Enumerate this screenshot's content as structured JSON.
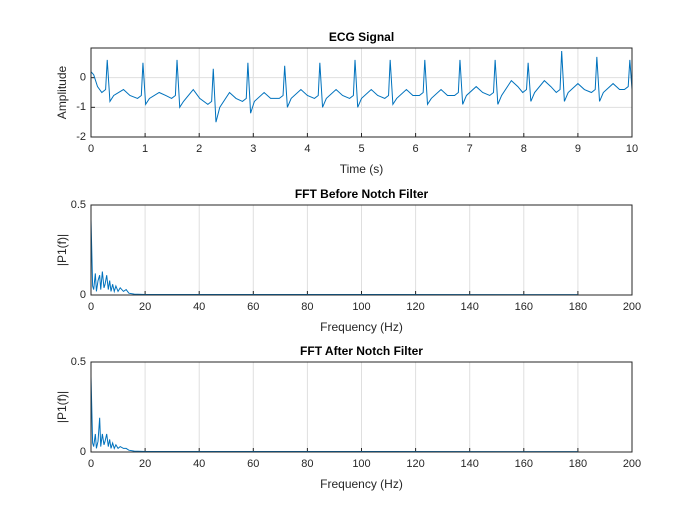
{
  "chart_data": [
    {
      "type": "line",
      "title": "ECG Signal",
      "xlabel": "Time (s)",
      "ylabel": "Amplitude",
      "grid": true,
      "color": "#0072bd",
      "xlim": [
        0,
        10
      ],
      "xticks": [
        0,
        1,
        2,
        3,
        4,
        5,
        6,
        7,
        8,
        9,
        10
      ],
      "ylim": [
        -2,
        1
      ],
      "yticks": [
        -2,
        -1,
        0
      ],
      "x": [
        0,
        0.05,
        0.12,
        0.2,
        0.27,
        0.3,
        0.35,
        0.42,
        0.6,
        0.72,
        0.86,
        0.93,
        0.96,
        1.01,
        1.08,
        1.26,
        1.38,
        1.49,
        1.56,
        1.59,
        1.64,
        1.71,
        1.89,
        2.01,
        2.16,
        2.23,
        2.26,
        2.31,
        2.38,
        2.56,
        2.68,
        2.8,
        2.87,
        2.9,
        2.95,
        3.02,
        3.2,
        3.32,
        3.48,
        3.55,
        3.58,
        3.63,
        3.7,
        3.88,
        4.0,
        4.13,
        4.2,
        4.23,
        4.28,
        4.35,
        4.53,
        4.65,
        4.78,
        4.85,
        4.88,
        4.93,
        5.0,
        5.18,
        5.3,
        5.43,
        5.5,
        5.53,
        5.58,
        5.65,
        5.83,
        5.95,
        6.07,
        6.14,
        6.17,
        6.22,
        6.29,
        6.47,
        6.59,
        6.72,
        6.79,
        6.82,
        6.87,
        6.94,
        7.12,
        7.24,
        7.37,
        7.44,
        7.47,
        7.52,
        7.59,
        7.77,
        7.89,
        7.98,
        8.05,
        8.08,
        8.13,
        8.2,
        8.38,
        8.5,
        8.6,
        8.67,
        8.7,
        8.75,
        8.82,
        9.0,
        9.12,
        9.25,
        9.32,
        9.35,
        9.4,
        9.47,
        9.65,
        9.77,
        9.86,
        9.93,
        9.96,
        10
      ],
      "values": [
        0.2,
        0.1,
        -0.3,
        -0.5,
        -0.4,
        0.6,
        -0.8,
        -0.6,
        -0.4,
        -0.6,
        -0.7,
        -0.6,
        0.5,
        -0.9,
        -0.7,
        -0.5,
        -0.6,
        -0.7,
        -0.6,
        0.6,
        -1.0,
        -0.8,
        -0.4,
        -0.7,
        -0.9,
        -0.8,
        0.3,
        -1.5,
        -1.0,
        -0.5,
        -0.7,
        -0.8,
        -0.7,
        0.5,
        -1.2,
        -0.8,
        -0.5,
        -0.7,
        -0.7,
        -0.6,
        0.4,
        -1.0,
        -0.7,
        -0.4,
        -0.6,
        -0.7,
        -0.6,
        0.5,
        -1.0,
        -0.7,
        -0.4,
        -0.6,
        -0.7,
        -0.6,
        0.6,
        -1.0,
        -0.7,
        -0.4,
        -0.6,
        -0.7,
        -0.6,
        0.6,
        -0.9,
        -0.7,
        -0.4,
        -0.6,
        -0.6,
        -0.5,
        0.6,
        -0.9,
        -0.7,
        -0.4,
        -0.6,
        -0.6,
        -0.5,
        0.6,
        -0.9,
        -0.6,
        -0.3,
        -0.5,
        -0.6,
        -0.5,
        0.6,
        -0.9,
        -0.6,
        -0.1,
        -0.3,
        -0.5,
        -0.4,
        0.5,
        -0.8,
        -0.5,
        -0.1,
        -0.3,
        -0.5,
        -0.4,
        0.9,
        -0.8,
        -0.5,
        -0.2,
        -0.4,
        -0.5,
        -0.4,
        0.7,
        -0.8,
        -0.5,
        -0.2,
        -0.4,
        -0.4,
        -0.3,
        0.6,
        -0.4
      ]
    },
    {
      "type": "line",
      "title": "FFT Before Notch Filter",
      "xlabel": "Frequency (Hz)",
      "ylabel": "|P1(f)|",
      "grid": true,
      "color": "#0072bd",
      "xlim": [
        0,
        200
      ],
      "xticks": [
        0,
        20,
        40,
        60,
        80,
        100,
        120,
        140,
        160,
        180,
        200
      ],
      "ylim": [
        0,
        0.5
      ],
      "yticks": [
        0,
        0.5
      ],
      "x": [
        0,
        0.6,
        1.0,
        1.6,
        2.0,
        2.6,
        3.2,
        3.6,
        4.2,
        4.8,
        5.2,
        5.8,
        6.4,
        6.9,
        7.4,
        8.0,
        8.6,
        9.2,
        10,
        10.8,
        12,
        13,
        14,
        16,
        20,
        180
      ],
      "values": [
        0.42,
        0.05,
        0.03,
        0.12,
        0.02,
        0.08,
        0.11,
        0.03,
        0.13,
        0.04,
        0.06,
        0.11,
        0.03,
        0.08,
        0.02,
        0.06,
        0.02,
        0.05,
        0.02,
        0.04,
        0.02,
        0.03,
        0.01,
        0.005,
        0.003,
        0.002
      ]
    },
    {
      "type": "line",
      "title": "FFT After Notch Filter",
      "xlabel": "Frequency (Hz)",
      "ylabel": "|P1(f)|",
      "grid": true,
      "color": "#0072bd",
      "xlim": [
        0,
        200
      ],
      "xticks": [
        0,
        20,
        40,
        60,
        80,
        100,
        120,
        140,
        160,
        180,
        200
      ],
      "ylim": [
        0,
        0.5
      ],
      "yticks": [
        0,
        0.5
      ],
      "x": [
        0,
        0.6,
        1.0,
        1.6,
        2.0,
        2.6,
        3.2,
        3.6,
        4.2,
        4.8,
        5.2,
        5.8,
        6.4,
        6.9,
        7.4,
        8.0,
        8.6,
        9.2,
        10,
        10.8,
        12,
        13,
        14,
        16,
        20,
        180
      ],
      "values": [
        0.42,
        0.05,
        0.03,
        0.1,
        0.02,
        0.06,
        0.19,
        0.03,
        0.1,
        0.04,
        0.06,
        0.1,
        0.03,
        0.07,
        0.02,
        0.05,
        0.02,
        0.04,
        0.02,
        0.03,
        0.02,
        0.02,
        0.01,
        0.005,
        0.003,
        0.002
      ]
    }
  ]
}
